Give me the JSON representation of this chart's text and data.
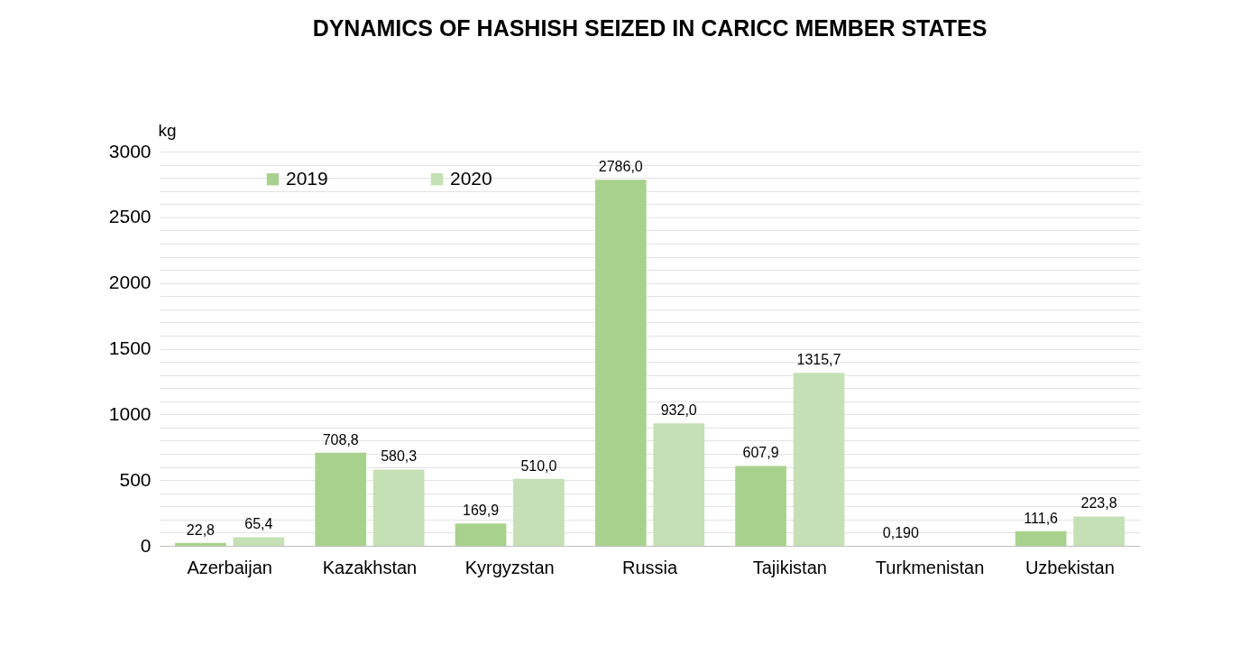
{
  "chart_data": {
    "type": "bar",
    "title": "DYNAMICS OF HASHISH SEIZED IN CARICC MEMBER STATES",
    "ylabel": "kg",
    "categories": [
      "Azerbaijan",
      "Kazakhstan",
      "Kyrgyzstan",
      "Russia",
      "Tajikistan",
      "Turkmenistan",
      "Uzbekistan"
    ],
    "series": [
      {
        "name": "2019",
        "color": "#a9d18e",
        "values": [
          22.8,
          708.8,
          169.9,
          2786.0,
          607.9,
          0.19,
          111.6
        ],
        "value_labels": [
          "22,8",
          "708,8",
          "169,9",
          "2786,0",
          "607,9",
          "0,190",
          "111,6"
        ]
      },
      {
        "name": "2020",
        "color": "#c5e0b4",
        "values": [
          65.4,
          580.3,
          510.0,
          932.0,
          1315.7,
          null,
          223.8
        ],
        "value_labels": [
          "65,4",
          "580,3",
          "510,0",
          "932,0",
          "1315,7",
          null,
          "223,8"
        ]
      }
    ],
    "ylim": [
      0,
      3000
    ],
    "yticks": [
      0,
      {
        "value": 100,
        "label": null
      },
      {
        "value": 200,
        "label": null
      },
      {
        "value": 300,
        "label": null
      },
      {
        "value": 400,
        "label": null
      },
      500,
      {
        "value": 600,
        "label": null
      },
      {
        "value": 700,
        "label": null
      },
      {
        "value": 800,
        "label": null
      },
      {
        "value": 900,
        "label": null
      },
      1000,
      {
        "value": 1100,
        "label": null
      },
      {
        "value": 1200,
        "label": null
      },
      {
        "value": 1300,
        "label": null
      },
      {
        "value": 1400,
        "label": null
      },
      1500,
      {
        "value": 1600,
        "label": null
      },
      {
        "value": 1700,
        "label": null
      },
      {
        "value": 1800,
        "label": null
      },
      {
        "value": 1900,
        "label": null
      },
      2000,
      {
        "value": 2100,
        "label": null
      },
      {
        "value": 2200,
        "label": null
      },
      {
        "value": 2300,
        "label": null
      },
      {
        "value": 2400,
        "label": null
      },
      2500,
      {
        "value": 2600,
        "label": null
      },
      {
        "value": 2700,
        "label": null
      },
      {
        "value": 2800,
        "label": null
      },
      {
        "value": 2900,
        "label": null
      },
      3000
    ],
    "grid": "y",
    "legend": "top left"
  }
}
